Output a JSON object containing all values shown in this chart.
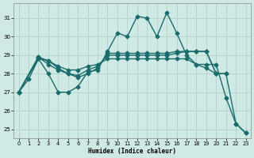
{
  "xlabel": "Humidex (Indice chaleur)",
  "bg_color": "#cfe9e5",
  "grid_color": "#b0d4cc",
  "line_color": "#1a6b6b",
  "markersize": 2.5,
  "linewidth": 1.0,
  "xlim": [
    -0.5,
    23.5
  ],
  "ylim": [
    24.5,
    31.8
  ],
  "yticks": [
    25,
    26,
    27,
    28,
    29,
    30,
    31
  ],
  "xticks": [
    0,
    1,
    2,
    3,
    4,
    5,
    6,
    7,
    8,
    9,
    10,
    11,
    12,
    13,
    14,
    15,
    16,
    17,
    18,
    19,
    20,
    21,
    22,
    23
  ],
  "s1_x": [
    0,
    1,
    2,
    3,
    4,
    5,
    6,
    7,
    8,
    9,
    10,
    11,
    12,
    13,
    14,
    15,
    16,
    17,
    18,
    19,
    20,
    21,
    22,
    23
  ],
  "s1_y": [
    27.0,
    27.7,
    28.8,
    28.0,
    27.0,
    27.0,
    27.3,
    28.1,
    28.2,
    29.2,
    30.2,
    30.0,
    31.1,
    31.0,
    30.0,
    31.3,
    30.2,
    29.0,
    28.5,
    28.5,
    28.5,
    26.7,
    25.3,
    24.8
  ],
  "s2_x": [
    0,
    2,
    3,
    4,
    5,
    6,
    7,
    8,
    9,
    10,
    11,
    12,
    13,
    14,
    15,
    16,
    17,
    18,
    19,
    20,
    21,
    22,
    23
  ],
  "s2_y": [
    27.0,
    28.8,
    28.7,
    28.4,
    28.2,
    28.2,
    28.4,
    28.5,
    28.8,
    28.8,
    28.8,
    28.8,
    28.8,
    28.8,
    28.8,
    28.8,
    28.8,
    28.5,
    28.3,
    28.0,
    28.0,
    25.3,
    24.8
  ],
  "s3_x": [
    0,
    2,
    3,
    4,
    5,
    6,
    7,
    8,
    9,
    10,
    11,
    12,
    13,
    14,
    15,
    16,
    17,
    18,
    19,
    20,
    21
  ],
  "s3_y": [
    27.0,
    28.9,
    28.5,
    28.2,
    28.0,
    27.9,
    28.2,
    28.4,
    29.0,
    29.0,
    29.0,
    29.0,
    29.0,
    29.0,
    29.0,
    29.1,
    29.2,
    29.2,
    29.2,
    28.0,
    28.0
  ],
  "s4_x": [
    0,
    2,
    3,
    4,
    5,
    6,
    7,
    8,
    9,
    10,
    11,
    12,
    13,
    14,
    15,
    16,
    17,
    18,
    19,
    20
  ],
  "s4_y": [
    27.0,
    28.9,
    28.7,
    28.3,
    28.0,
    27.8,
    28.0,
    28.3,
    29.1,
    29.1,
    29.1,
    29.1,
    29.1,
    29.1,
    29.1,
    29.2,
    29.2,
    29.2,
    29.2,
    28.0
  ]
}
